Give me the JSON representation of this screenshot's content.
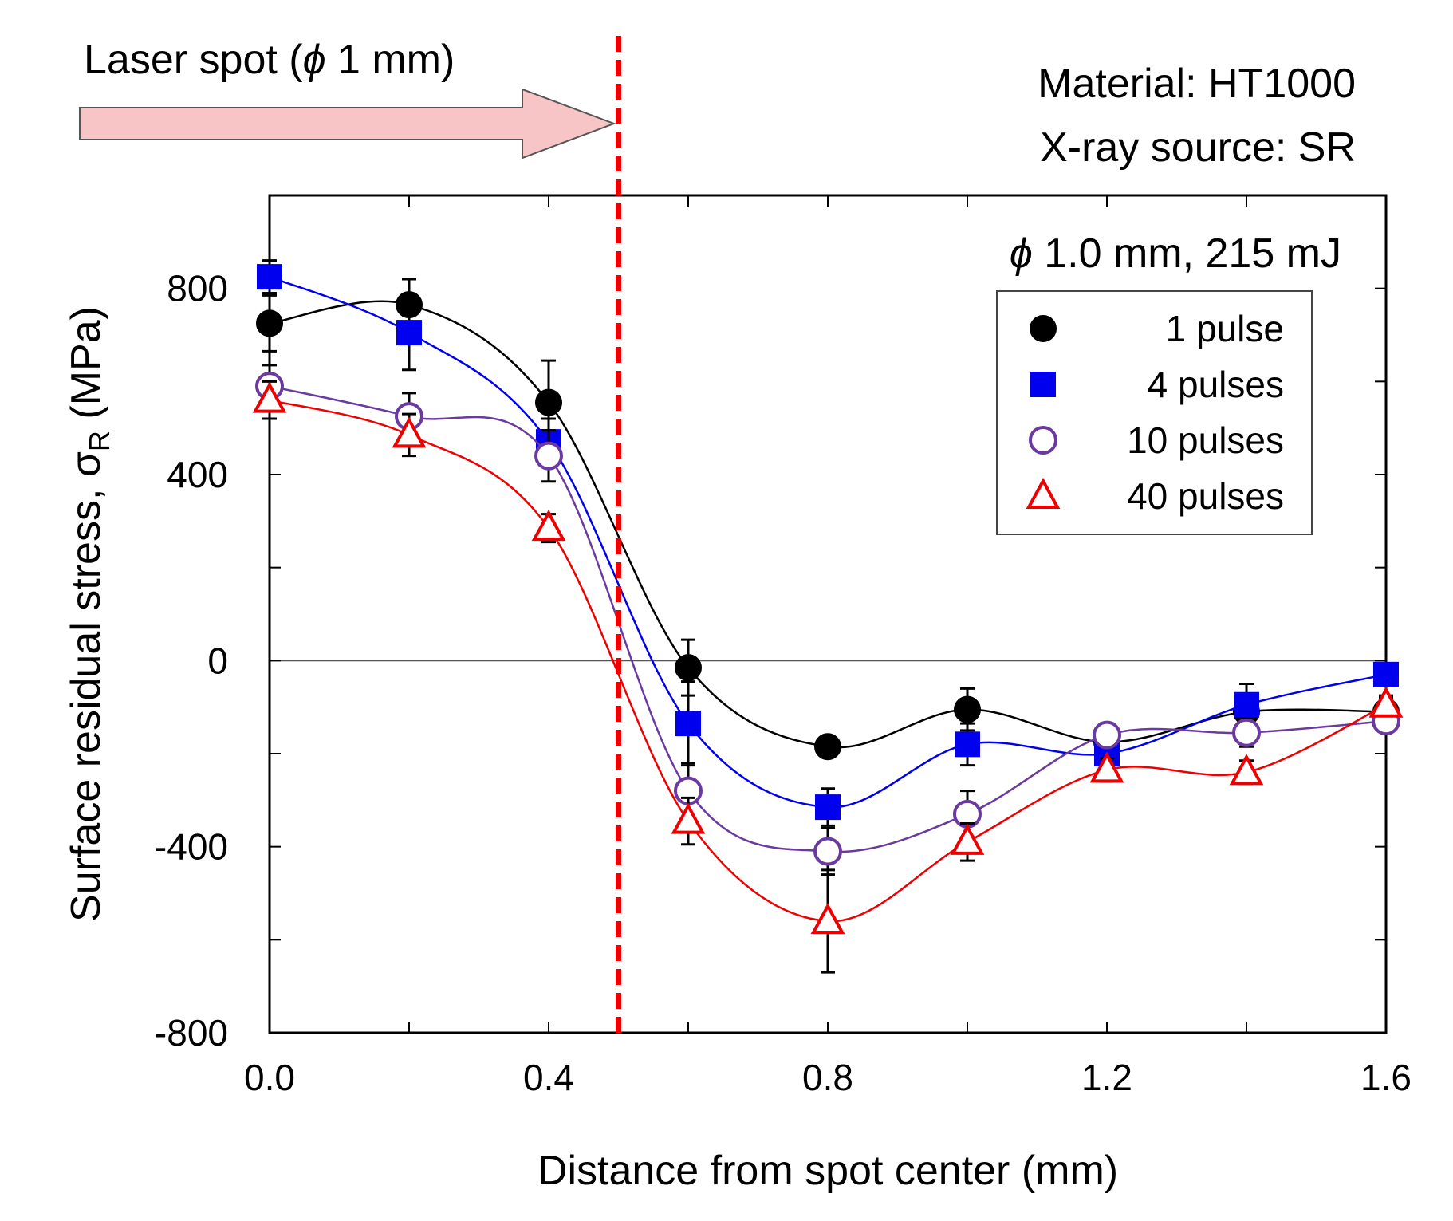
{
  "annotations": {
    "laser_spot_label": "Laser spot (",
    "phi": "ϕ",
    "laser_spot_size": " 1 mm)",
    "material": "Material:  HT1000",
    "xray_source": "X-ray source:  SR",
    "condition_size": " 1.0 mm, 215 mJ"
  },
  "colors": {
    "pulse1": "#000000",
    "pulse4": "#0000ee",
    "pulse10": "#6a3aa0",
    "pulse40": "#ee0000",
    "boundary": "#ee0000",
    "arrow_fill": "#f7c5c5",
    "arrow_stroke": "#555555"
  },
  "chart_data": {
    "type": "line",
    "title": "",
    "xlabel": "Distance from spot center (mm)",
    "ylabel_main": "Surface residual stress,  σ",
    "ylabel_sub": "R",
    "ylabel_unit": " (MPa)",
    "xlim": [
      0.0,
      1.6
    ],
    "ylim": [
      -800,
      1000
    ],
    "xticks": [
      0.0,
      0.4,
      0.8,
      1.2,
      1.6
    ],
    "xtick_labels": [
      "0.0",
      "0.4",
      "0.8",
      "1.2",
      "1.6"
    ],
    "yticks": [
      -800,
      -400,
      0,
      400,
      800
    ],
    "ytick_labels": [
      "-800",
      "-400",
      "0",
      "400",
      "800"
    ],
    "spot_boundary_x": 0.5,
    "legend_position": "upper-right",
    "x": [
      0.0,
      0.2,
      0.4,
      0.6,
      0.8,
      1.0,
      1.2,
      1.4,
      1.6
    ],
    "series": [
      {
        "name": "1 pulse",
        "marker": "filled-circle",
        "color_key": "pulse1",
        "values": [
          725,
          765,
          555,
          -15,
          -185,
          -105,
          -175,
          -110,
          -110
        ],
        "errors": [
          60,
          55,
          90,
          60,
          20,
          45,
          35,
          25,
          30
        ]
      },
      {
        "name": "4 pulses",
        "marker": "filled-square",
        "color_key": "pulse4",
        "values": [
          825,
          705,
          470,
          -135,
          -315,
          -180,
          -200,
          -95,
          -30
        ],
        "errors": [
          35,
          80,
          50,
          90,
          40,
          45,
          40,
          45,
          20
        ]
      },
      {
        "name": "10 pulses",
        "marker": "open-circle",
        "color_key": "pulse10",
        "values": [
          590,
          525,
          440,
          -280,
          -410,
          -330,
          -160,
          -155,
          -130
        ],
        "errors": [
          45,
          50,
          55,
          60,
          50,
          50,
          25,
          30,
          20
        ]
      },
      {
        "name": "40 pulses",
        "marker": "open-triangle",
        "color_key": "pulse40",
        "values": [
          560,
          485,
          285,
          -345,
          -560,
          -390,
          -235,
          -240,
          -95
        ],
        "errors": [
          40,
          45,
          30,
          50,
          110,
          40,
          25,
          25,
          20
        ]
      }
    ]
  }
}
